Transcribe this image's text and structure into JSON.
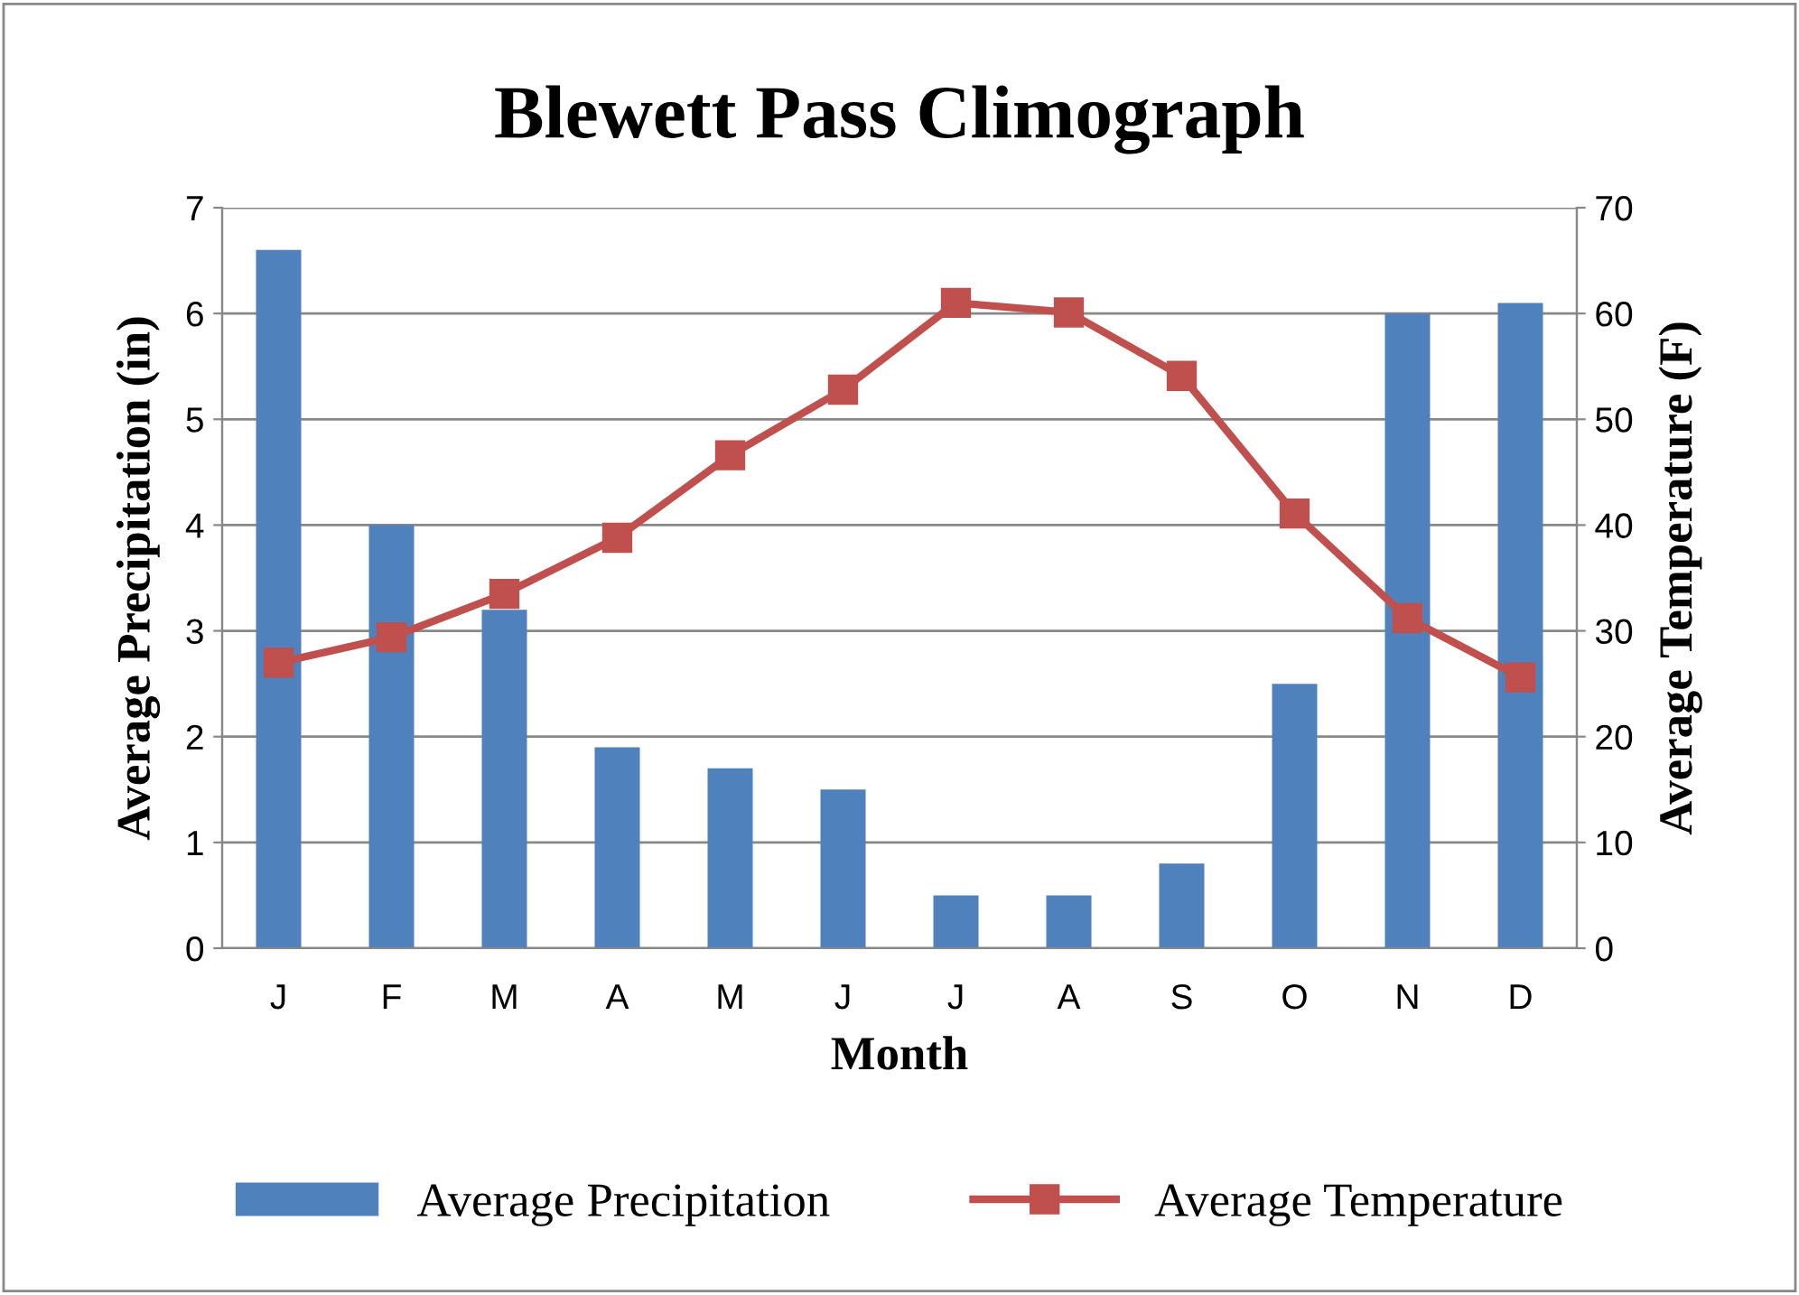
{
  "chart_data": {
    "type": "bar",
    "title": "Blewett Pass Climograph",
    "xlabel": "Month",
    "ylabel": "Average Precipitation (in)",
    "y2label": "Average Temperature (F)",
    "categories": [
      "J",
      "F",
      "M",
      "A",
      "M",
      "J",
      "J",
      "A",
      "S",
      "O",
      "N",
      "D"
    ],
    "series": [
      {
        "name": "Average Precipitation",
        "color": "#4f81bd",
        "values": [
          6.6,
          4.0,
          3.2,
          1.9,
          1.7,
          1.5,
          0.5,
          0.5,
          0.8,
          2.5,
          6.0,
          6.1
        ]
      },
      {
        "name": "Average Temperature",
        "type": "line",
        "axis": "y2",
        "color": "#c0504d",
        "marker": "square",
        "values": [
          27.0,
          29.4,
          33.5,
          38.8,
          46.6,
          52.8,
          61.0,
          60.1,
          54.1,
          41.1,
          31.2,
          25.6
        ]
      }
    ],
    "ylim": [
      0,
      7
    ],
    "yticks": [
      0,
      1,
      2,
      3,
      4,
      5,
      6,
      7
    ],
    "y2lim": [
      0,
      70
    ],
    "y2ticks": [
      0,
      10,
      20,
      30,
      40,
      50,
      60,
      70
    ],
    "grid": "y",
    "legend": "bottom"
  }
}
